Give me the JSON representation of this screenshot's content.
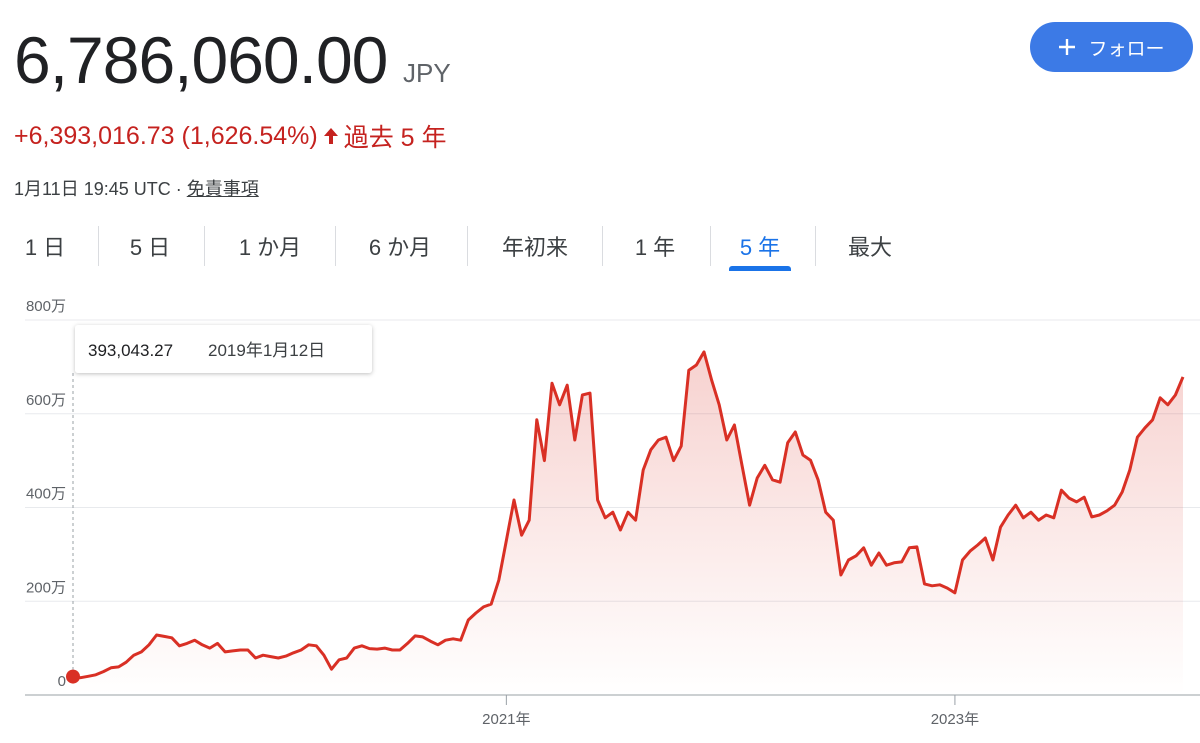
{
  "header": {
    "price": "6,786,060.00",
    "currency": "JPY",
    "follow": "フォロー",
    "change": "+6,393,016.73 (1,626.54%)",
    "period": "過去 5 年",
    "timestamp": "1月11日 19:45 UTC ·",
    "disclaimer": "免責事項"
  },
  "tabs": {
    "items": [
      "1 日",
      "5 日",
      "1 か月",
      "6 か月",
      "年初来",
      "1 年",
      "5 年",
      "最大"
    ],
    "selected": 6
  },
  "chart_data": {
    "type": "line",
    "color": "#d93025",
    "grid": true,
    "ylim": [
      0,
      8000000
    ],
    "yticks": [
      0,
      {
        "value": 2000000,
        "label": "200万"
      },
      {
        "value": 4000000,
        "label": "400万"
      },
      {
        "value": 6000000,
        "label": "600万"
      },
      {
        "value": 8000000,
        "label": "800万"
      }
    ],
    "tooltip": {
      "value": "393,043.27",
      "date": "2019年1月12日"
    },
    "categories": [
      null,
      null,
      null,
      null,
      null,
      null,
      null,
      null,
      null,
      null,
      null,
      null,
      null,
      null,
      null,
      null,
      null,
      null,
      null,
      null,
      null,
      null,
      null,
      null,
      null,
      null,
      null,
      null,
      null,
      null,
      null,
      null,
      null,
      null,
      null,
      null,
      null,
      null,
      null,
      null,
      null,
      null,
      null,
      null,
      null,
      null,
      null,
      null,
      null,
      null,
      null,
      null,
      null,
      null,
      null,
      null,
      null,
      "2021年",
      null,
      null,
      null,
      null,
      null,
      null,
      null,
      null,
      null,
      null,
      null,
      null,
      null,
      null,
      null,
      null,
      null,
      null,
      null,
      null,
      null,
      null,
      null,
      null,
      null,
      null,
      null,
      null,
      null,
      null,
      null,
      null,
      null,
      null,
      null,
      null,
      null,
      null,
      null,
      null,
      null,
      null,
      null,
      null,
      null,
      null,
      null,
      null,
      null,
      null,
      null,
      null,
      null,
      null,
      null,
      null,
      null,
      null,
      "2023年",
      null,
      null,
      null,
      null,
      null,
      null,
      null,
      null,
      null,
      null,
      null,
      null,
      null,
      null,
      null,
      null,
      null,
      null,
      null,
      null,
      null,
      null,
      null,
      null,
      null,
      null,
      null,
      null,
      null,
      null
    ],
    "values": [
      393043.27,
      370000,
      400000,
      430000,
      500000,
      580000,
      600000,
      700000,
      850000,
      920000,
      1070000,
      1280000,
      1250000,
      1220000,
      1050000,
      1100000,
      1170000,
      1070000,
      1000000,
      1100000,
      920000,
      940000,
      960000,
      960000,
      790000,
      850000,
      820000,
      790000,
      830000,
      900000,
      960000,
      1070000,
      1050000,
      850000,
      550000,
      750000,
      790000,
      1000000,
      1050000,
      990000,
      980000,
      1000000,
      960000,
      960000,
      1100000,
      1260000,
      1240000,
      1150000,
      1070000,
      1170000,
      1200000,
      1170000,
      1600000,
      1750000,
      1880000,
      1940000,
      2450000,
      3300000,
      4160000,
      3410000,
      3730000,
      5870000,
      5000000,
      6650000,
      6190000,
      6610000,
      5440000,
      6400000,
      6440000,
      4160000,
      3780000,
      3900000,
      3520000,
      3900000,
      3730000,
      4800000,
      5230000,
      5440000,
      5500000,
      5000000,
      5310000,
      6930000,
      7040000,
      7320000,
      6720000,
      6190000,
      5440000,
      5760000,
      4900000,
      4050000,
      4630000,
      4900000,
      4590000,
      4540000,
      5380000,
      5610000,
      5120000,
      5010000,
      4590000,
      3900000,
      3730000,
      2560000,
      2880000,
      2970000,
      3140000,
      2770000,
      3030000,
      2770000,
      2820000,
      2840000,
      3140000,
      3160000,
      2370000,
      2330000,
      2350000,
      2280000,
      2180000,
      2880000,
      3070000,
      3200000,
      3350000,
      2880000,
      3580000,
      3840000,
      4050000,
      3780000,
      3900000,
      3730000,
      3840000,
      3780000,
      4370000,
      4200000,
      4120000,
      4220000,
      3800000,
      3840000,
      3930000,
      4050000,
      4330000,
      4800000,
      5500000,
      5700000,
      5870000,
      6340000,
      6190000,
      6400000,
      6786060
    ]
  }
}
